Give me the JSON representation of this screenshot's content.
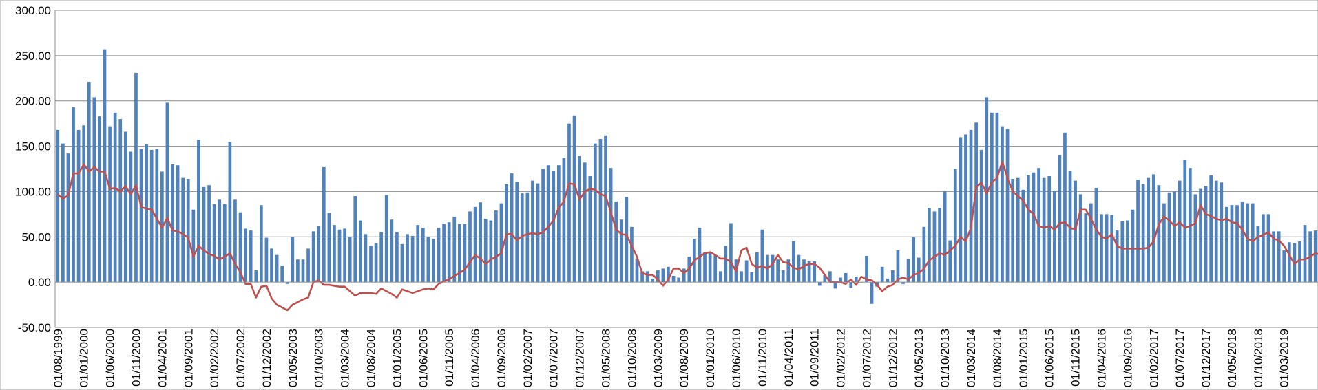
{
  "chart_data": {
    "type": "bar",
    "title": "",
    "xlabel": "",
    "ylabel": "",
    "ylim": [
      -50,
      300
    ],
    "y_ticks": [
      "-50.00",
      "0.00",
      "50.00",
      "100.00",
      "150.00",
      "200.00",
      "250.00",
      "300.00"
    ],
    "y_tick_values": [
      -50,
      0,
      50,
      100,
      150,
      200,
      250,
      300
    ],
    "x_start": "1999-08",
    "x_tick_labels": [
      "01/08/1999",
      "01/01/2000",
      "01/06/2000",
      "01/11/2000",
      "01/04/2001",
      "01/09/2001",
      "01/02/2002",
      "01/07/2002",
      "01/12/2002",
      "01/05/2003",
      "01/10/2003",
      "01/03/2004",
      "01/08/2004",
      "01/01/2005",
      "01/06/2005",
      "01/11/2005",
      "01/04/2006",
      "01/09/2006",
      "01/02/2007",
      "01/07/2007",
      "01/12/2007",
      "01/05/2008",
      "01/10/2008",
      "01/03/2009",
      "01/08/2009",
      "01/01/2010",
      "01/06/2010",
      "01/11/2010",
      "01/04/2011",
      "01/09/2011",
      "01/02/2012",
      "01/07/2012",
      "01/12/2012",
      "01/05/2013",
      "01/10/2013",
      "01/03/2014",
      "01/08/2014",
      "01/01/2015",
      "01/06/2015",
      "01/11/2015",
      "01/04/2016",
      "01/09/2016",
      "01/02/2017",
      "01/07/2017",
      "01/12/2017",
      "01/05/2018",
      "01/10/2018",
      "01/03/2019"
    ],
    "grid": true,
    "series": [
      {
        "kind": "bar",
        "color": "#4f81bd",
        "values": [
          168,
          153,
          142,
          193,
          168,
          173,
          221,
          204,
          183,
          257,
          172,
          187,
          180,
          166,
          144,
          231,
          147,
          152,
          146,
          147,
          122,
          198,
          130,
          129,
          115,
          114,
          80,
          157,
          105,
          107,
          86,
          91,
          86,
          155,
          91,
          77,
          59,
          57,
          13,
          85,
          49,
          37,
          30,
          18,
          -2,
          50,
          25,
          25,
          37,
          56,
          62,
          127,
          76,
          63,
          58,
          59,
          50,
          95,
          68,
          53,
          40,
          43,
          55,
          96,
          69,
          55,
          42,
          53,
          51,
          63,
          60,
          50,
          48,
          60,
          64,
          66,
          72,
          64,
          64,
          78,
          83,
          88,
          70,
          68,
          79,
          87,
          108,
          120,
          111,
          98,
          99,
          112,
          109,
          125,
          129,
          123,
          129,
          137,
          175,
          184,
          139,
          132,
          117,
          153,
          158,
          162,
          126,
          89,
          69,
          94,
          61,
          26,
          12,
          12,
          4,
          13,
          15,
          17,
          7,
          5,
          15,
          28,
          48,
          60,
          33,
          33,
          30,
          12,
          40,
          65,
          25,
          12,
          24,
          11,
          33,
          58,
          30,
          30,
          25,
          13,
          25,
          45,
          30,
          25,
          23,
          23,
          -4,
          8,
          12,
          -7,
          5,
          10,
          -6,
          6,
          0,
          29,
          -24,
          -5,
          17,
          4,
          13,
          35,
          -2,
          26,
          50,
          27,
          61,
          82,
          78,
          82,
          100,
          46,
          125,
          160,
          163,
          168,
          176,
          146,
          204,
          187,
          187,
          172,
          169,
          114,
          115,
          102,
          118,
          121,
          126,
          115,
          117,
          101,
          140,
          165,
          123,
          112,
          97,
          76,
          87,
          104,
          75,
          75,
          74,
          57,
          67,
          68,
          80,
          113,
          108,
          115,
          119,
          107,
          87,
          99,
          100,
          112,
          135,
          126,
          97,
          103,
          106,
          118,
          112,
          110,
          83,
          85,
          85,
          89,
          87,
          87,
          62,
          75,
          75,
          56,
          56,
          35,
          44,
          43,
          45,
          63,
          56,
          57
        ]
      },
      {
        "kind": "line",
        "color": "#c0504d",
        "values": [
          97,
          92,
          96,
          120,
          120,
          130,
          122,
          127,
          122,
          122,
          103,
          104,
          100,
          106,
          97,
          107,
          83,
          81,
          80,
          70,
          60,
          71,
          57,
          56,
          53,
          49,
          28,
          40,
          35,
          31,
          29,
          25,
          28,
          32,
          20,
          11,
          -2,
          -2,
          -17,
          -5,
          -4,
          -18,
          -25,
          -28,
          -31,
          -25,
          -22,
          -19,
          -17,
          0,
          2,
          -3,
          -3,
          -4,
          -5,
          -5,
          -10,
          -15,
          -12,
          -12,
          -12,
          -13,
          -7,
          -10,
          -13,
          -17,
          -8,
          -10,
          -12,
          -10,
          -8,
          -7,
          -8,
          -2,
          1,
          3,
          7,
          10,
          14,
          22,
          30,
          26,
          20,
          25,
          28,
          32,
          53,
          53,
          46,
          51,
          53,
          54,
          53,
          55,
          61,
          68,
          82,
          89,
          109,
          108,
          91,
          100,
          103,
          102,
          97,
          95,
          77,
          58,
          53,
          52,
          40,
          28,
          10,
          8,
          8,
          3,
          -4,
          3,
          15,
          15,
          10,
          15,
          24,
          28,
          32,
          33,
          30,
          26,
          26,
          22,
          12,
          35,
          38,
          20,
          16,
          18,
          15,
          20,
          30,
          22,
          21,
          16,
          14,
          18,
          20,
          20,
          16,
          8,
          0,
          0,
          0,
          -2,
          3,
          -3,
          6,
          3,
          2,
          -3,
          -10,
          -5,
          -3,
          3,
          5,
          3,
          8,
          10,
          15,
          24,
          28,
          32,
          30,
          35,
          40,
          50,
          45,
          60,
          105,
          110,
          98,
          110,
          115,
          133,
          115,
          100,
          95,
          90,
          80,
          75,
          62,
          60,
          62,
          58,
          65,
          66,
          60,
          58,
          80,
          80,
          70,
          58,
          50,
          48,
          53,
          40,
          37,
          37,
          37,
          37,
          37,
          38,
          45,
          64,
          72,
          68,
          62,
          66,
          60,
          62,
          65,
          85,
          75,
          73,
          70,
          68,
          70,
          66,
          65,
          58,
          48,
          45,
          50,
          52,
          55,
          48,
          46,
          40,
          30,
          20,
          25,
          25,
          28,
          32,
          30,
          35,
          32
        ]
      }
    ]
  }
}
